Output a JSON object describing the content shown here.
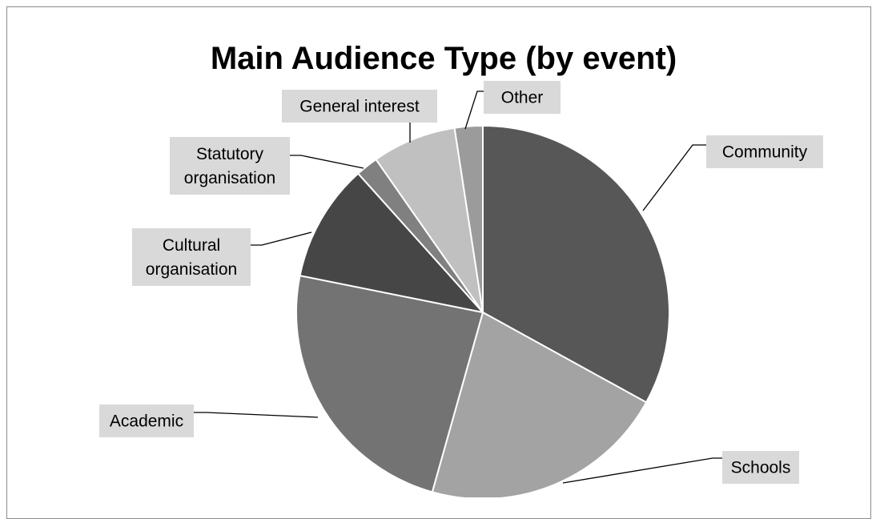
{
  "chart_data": {
    "type": "pie",
    "title": "Main Audience Type (by event)",
    "slices": [
      {
        "label": [
          "Community"
        ],
        "value": 34.0,
        "color": "#575757"
      },
      {
        "label": [
          "Schools"
        ],
        "value": 22.0,
        "color": "#a3a3a3"
      },
      {
        "label": [
          "Academic"
        ],
        "value": 24.5,
        "color": "#737373"
      },
      {
        "label": [
          "Cultural",
          "organisation"
        ],
        "value": 10.5,
        "color": "#464646"
      },
      {
        "label": [
          "Statutory",
          "organisation"
        ],
        "value": 2.0,
        "color": "#808080"
      },
      {
        "label": [
          "General interest"
        ],
        "value": 7.5,
        "color": "#c0c0c0"
      },
      {
        "label": [
          "Other"
        ],
        "value": 2.5,
        "color": "#9b9b9b"
      }
    ]
  }
}
